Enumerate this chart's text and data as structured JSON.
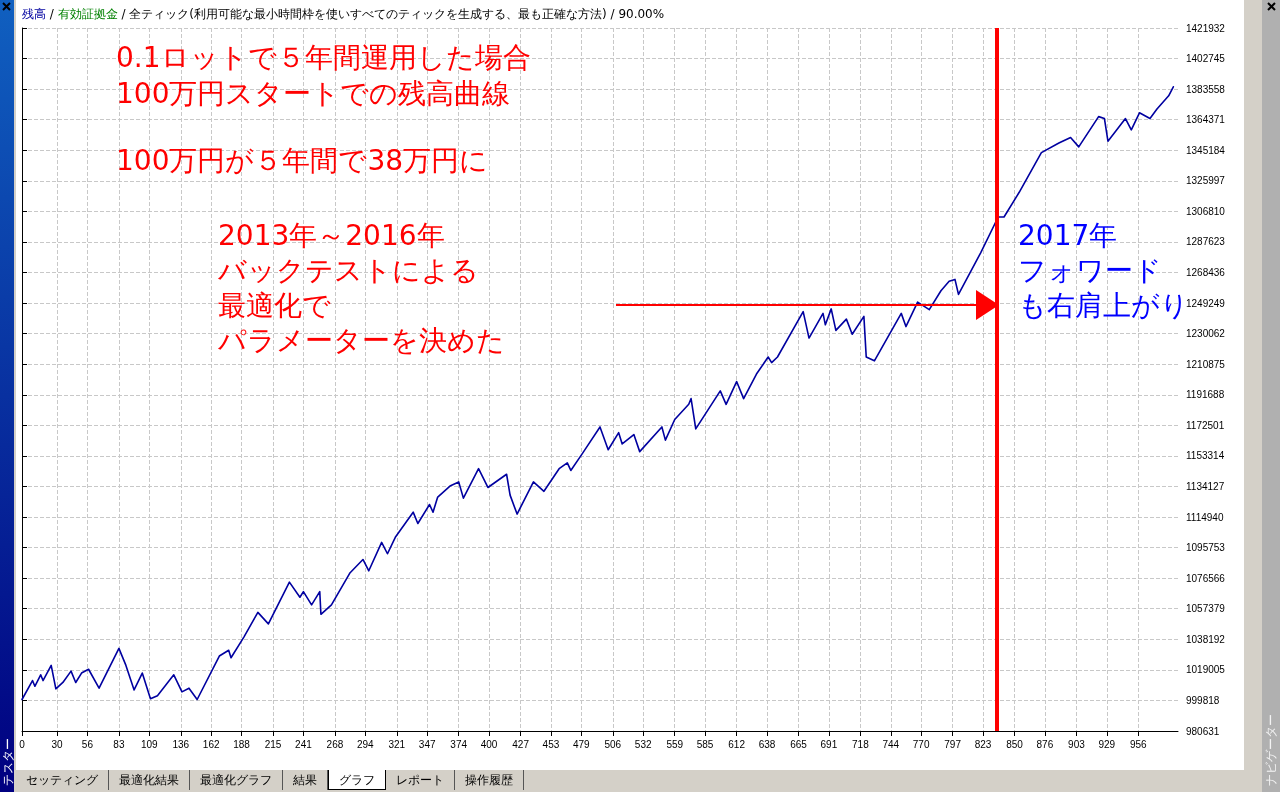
{
  "chart_data": {
    "type": "line",
    "title": "0.1ロットで５年間運用した場合",
    "subtitle": "100万円スタートでの残高曲線",
    "annotations": [
      "残高 / 有効証拠金 / 全ティック(利用可能な最小時間枠を使いすべてのティックを生成する、最も正確な方法) / 90.00%",
      "100万円が５年間で38万円に",
      "2013年～2016年",
      "バックテストによる",
      "最適化で",
      "パラメーターを決めた",
      "2017年",
      "フォワード",
      "も右肩上がり",
      "セッティング",
      "最適化結果",
      "最適化グラフ",
      "結果",
      "グラフ",
      "レポート",
      "操作履歴",
      "テスター",
      "ナビゲーター"
    ],
    "x": [
      0,
      9,
      11,
      16,
      18,
      25,
      29,
      35,
      42,
      46,
      51,
      57,
      66,
      83,
      89,
      96,
      103,
      110,
      116,
      130,
      137,
      143,
      150,
      169,
      177,
      179,
      190,
      202,
      211,
      229,
      238,
      241,
      248,
      255,
      256,
      265,
      281,
      292,
      297,
      308,
      313,
      320,
      335,
      339,
      349,
      352,
      356,
      367,
      374,
      378,
      391,
      399,
      415,
      418,
      424,
      438,
      447,
      460,
      467,
      470,
      480,
      495,
      502,
      511,
      514,
      524,
      529,
      548,
      551,
      559,
      571,
      573,
      577,
      598,
      603,
      612,
      618,
      629,
      639,
      642,
      647,
      669,
      674,
      686,
      688,
      693,
      697,
      706,
      711,
      721,
      723,
      730,
      753,
      757,
      767,
      777,
      787,
      794,
      799,
      802,
      821,
      836,
      841,
      854,
      873,
      888,
      898,
      905,
      922,
      927,
      930,
      945,
      950,
      957,
      966,
      972,
      982,
      986
    ],
    "series": [
      {
        "color": "#0000a0",
        "values": [
          1000400,
          1012300,
          1008700,
          1015900,
          1012300,
          1021800,
          1007100,
          1011100,
          1018200,
          1011100,
          1017000,
          1019400,
          1007500,
          1032500,
          1021800,
          1006400,
          1017000,
          1000900,
          1002800,
          1015900,
          1005200,
          1007500,
          1000400,
          1027700,
          1031300,
          1026600,
          1039600,
          1055100,
          1047900,
          1074100,
          1064600,
          1068100,
          1059800,
          1068100,
          1053900,
          1059800,
          1080000,
          1088300,
          1081200,
          1099000,
          1091900,
          1102600,
          1118000,
          1110900,
          1122800,
          1118000,
          1127500,
          1134600,
          1137000,
          1126800,
          1145300,
          1133500,
          1141800,
          1128700,
          1116800,
          1137000,
          1131100,
          1145300,
          1148900,
          1144200,
          1154900,
          1171500,
          1157200,
          1167900,
          1160800,
          1166700,
          1156000,
          1171500,
          1163200,
          1176200,
          1185700,
          1189300,
          1170300,
          1194100,
          1185700,
          1200000,
          1189300,
          1204700,
          1215400,
          1211900,
          1215400,
          1243900,
          1227300,
          1242800,
          1235600,
          1245600,
          1232100,
          1239200,
          1229700,
          1240900,
          1215400,
          1213000,
          1242800,
          1234500,
          1249900,
          1245100,
          1257000,
          1262900,
          1264100,
          1254700,
          1280800,
          1303300,
          1303300,
          1318800,
          1343700,
          1349700,
          1353200,
          1347300,
          1366300,
          1365100,
          1350900,
          1365100,
          1358000,
          1368700,
          1365100,
          1371100,
          1379400,
          1385000
        ]
      }
    ],
    "xlim": [
      0,
      990
    ],
    "xticks": [
      0,
      30,
      56,
      83,
      109,
      136,
      162,
      188,
      215,
      241,
      268,
      294,
      321,
      347,
      374,
      400,
      427,
      453,
      479,
      506,
      532,
      559,
      585,
      612,
      638,
      665,
      691,
      718,
      744,
      770,
      797,
      823,
      850,
      876,
      903,
      929,
      956
    ],
    "ylim": [
      980631,
      1421932
    ],
    "yticks": [
      980631,
      999818,
      1019005,
      1038192,
      1057379,
      1076566,
      1095753,
      1114940,
      1134127,
      1153314,
      1172501,
      1191688,
      1210875,
      1230062,
      1249249,
      1268436,
      1287623,
      1306810,
      1325997,
      1345184,
      1364371,
      1383558,
      1402745,
      1421932
    ],
    "ref_lines": [
      {
        "axis": "x",
        "value": 835,
        "color": "#ff0000"
      }
    ],
    "grid": true,
    "marker": "none",
    "line_style": "solid"
  }
}
